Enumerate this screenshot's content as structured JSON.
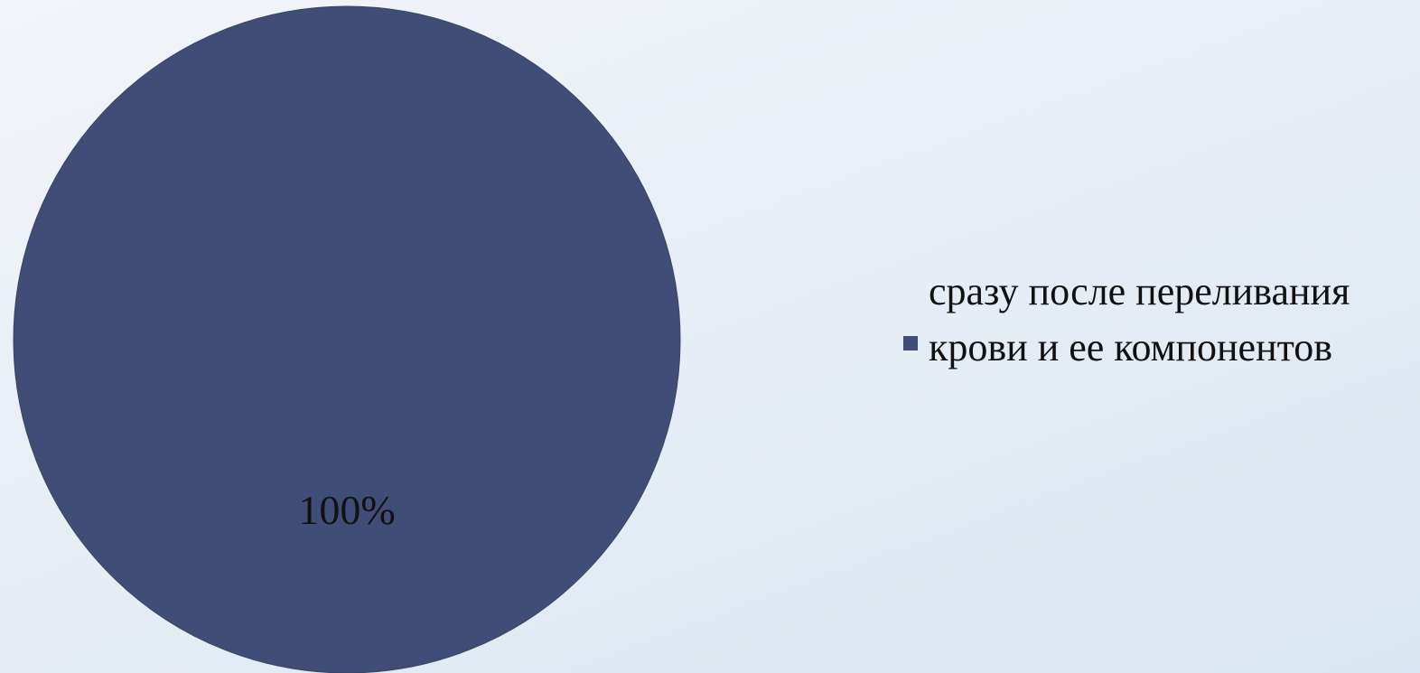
{
  "chart_data": {
    "type": "pie",
    "slices": [
      {
        "label": "сразу после переливания крови и ее компонентов",
        "value": 100,
        "data_label": "100%",
        "color": "#404d76"
      }
    ],
    "legend_position": "right"
  }
}
